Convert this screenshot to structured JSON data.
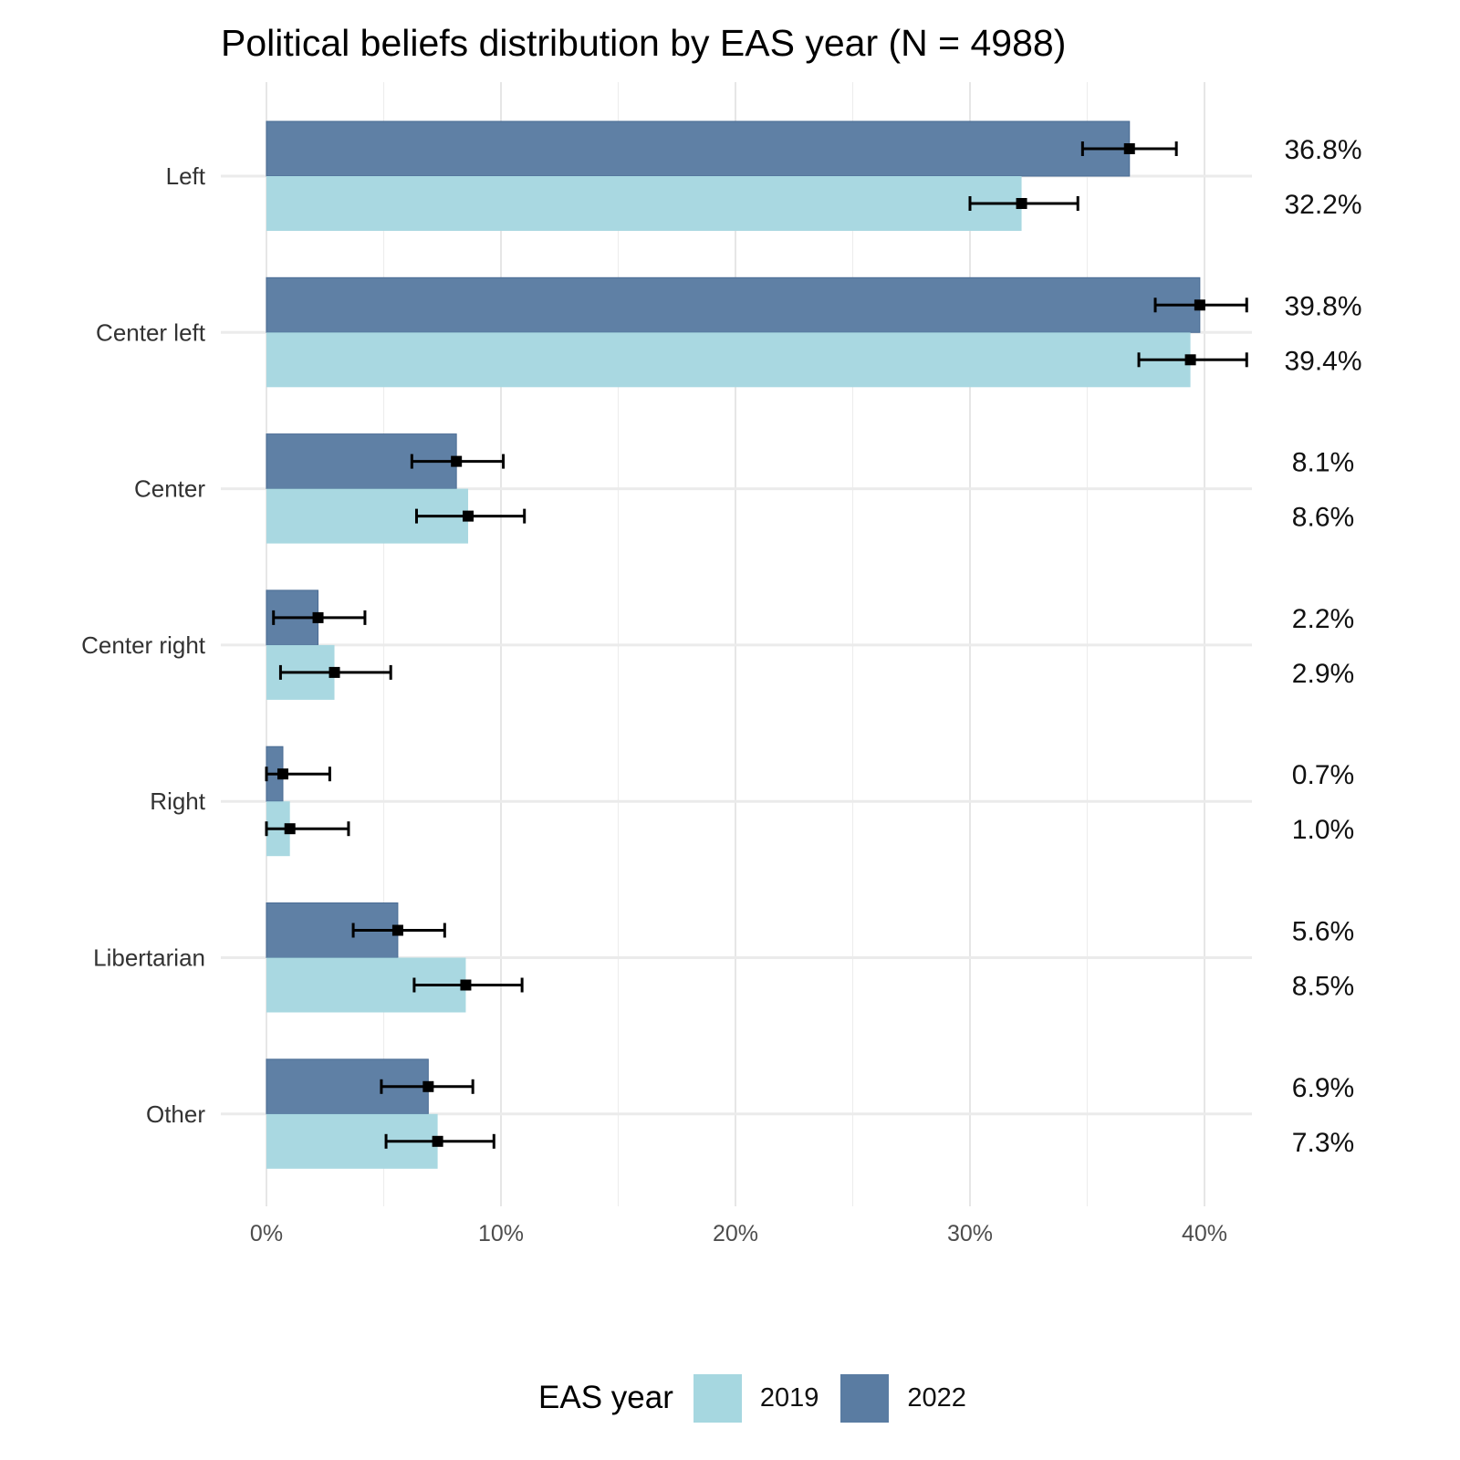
{
  "chart_data": {
    "type": "bar",
    "orientation": "horizontal",
    "title": "Political beliefs distribution by EAS year (N = 4988)",
    "xlabel": "",
    "ylabel": "",
    "xlim": [
      0,
      42
    ],
    "x_ticks": [
      0,
      10,
      20,
      30,
      40
    ],
    "x_tick_labels": [
      "0%",
      "10%",
      "20%",
      "30%",
      "40%"
    ],
    "grid": true,
    "legend": {
      "title": "EAS year",
      "position": "bottom",
      "entries": [
        {
          "label": "2019",
          "color": "#a6d7e0"
        },
        {
          "label": "2022",
          "color": "#5a7ca2"
        }
      ]
    },
    "categories": [
      "Left",
      "Center left",
      "Center",
      "Center right",
      "Right",
      "Libertarian",
      "Other"
    ],
    "series": [
      {
        "name": "2022",
        "color": "#5a7ca2",
        "values": [
          36.8,
          39.8,
          8.1,
          2.2,
          0.7,
          5.6,
          6.9
        ],
        "labels": [
          "36.8%",
          "39.8%",
          "8.1%",
          "2.2%",
          "0.7%",
          "5.6%",
          "6.9%"
        ],
        "ci_low": [
          34.8,
          37.9,
          6.2,
          0.3,
          0.0,
          3.7,
          4.9
        ],
        "ci_high": [
          38.8,
          41.8,
          10.1,
          4.2,
          2.7,
          7.6,
          8.8
        ]
      },
      {
        "name": "2019",
        "color": "#a6d7e0",
        "values": [
          32.2,
          39.4,
          8.6,
          2.9,
          1.0,
          8.5,
          7.3
        ],
        "labels": [
          "32.2%",
          "39.4%",
          "8.6%",
          "2.9%",
          "1.0%",
          "8.5%",
          "7.3%"
        ],
        "ci_low": [
          30.0,
          37.2,
          6.4,
          0.6,
          0.0,
          6.3,
          5.1
        ],
        "ci_high": [
          34.6,
          41.8,
          11.0,
          5.3,
          3.5,
          10.9,
          9.7
        ]
      }
    ]
  }
}
